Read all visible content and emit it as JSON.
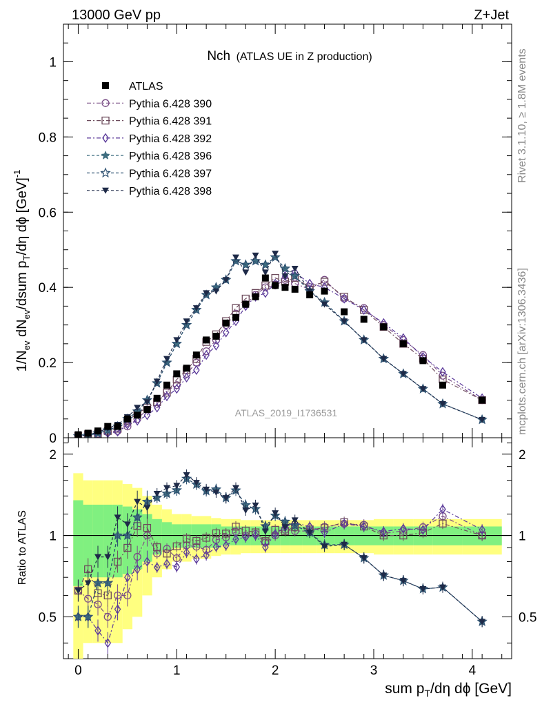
{
  "header": {
    "left": "13000 GeV pp",
    "right": "Z+Jet"
  },
  "side": {
    "rivet": "Rivet 3.1.10, ≥ 1.8M events",
    "mcplots": "mcplots.cern.ch [arXiv:1306.3436]"
  },
  "chart_data": {
    "type": "line",
    "title_main": "Nch",
    "title_sub": "(ATLAS UE in Z production)",
    "watermark": "ATLAS_2019_I1736531",
    "ylabel": "1/N_ev dN_ev/dsum p_T/dη dφ [GeV]^-1",
    "xlabel": "sum p_T/dη dφ [GeV]",
    "ratio_ylabel": "Ratio to ATLAS",
    "xlim": [
      -0.15,
      4.4
    ],
    "ylim": [
      0,
      1.1
    ],
    "ratio_ylim": [
      0.35,
      2.3
    ],
    "xticks": [
      "0",
      "1",
      "2",
      "3",
      "4"
    ],
    "yticks": [
      "0",
      "0.2",
      "0.4",
      "0.6",
      "0.8",
      "1"
    ],
    "ratio_yticks": [
      "0.5",
      "1",
      "2"
    ],
    "x": [
      0.0,
      0.1,
      0.2,
      0.3,
      0.4,
      0.5,
      0.6,
      0.7,
      0.8,
      0.9,
      1.0,
      1.1,
      1.2,
      1.3,
      1.4,
      1.5,
      1.6,
      1.7,
      1.8,
      1.9,
      2.0,
      2.1,
      2.2,
      2.35,
      2.5,
      2.7,
      2.9,
      3.1,
      3.3,
      3.5,
      3.7,
      4.1
    ],
    "legend": [
      {
        "name": "ATLAS"
      },
      {
        "name": "Pythia 6.428 390"
      },
      {
        "name": "Pythia 6.428 391"
      },
      {
        "name": "Pythia 6.428 392"
      },
      {
        "name": "Pythia 6.428 396"
      },
      {
        "name": "Pythia 6.428 397"
      },
      {
        "name": "Pythia 6.428 398"
      }
    ],
    "data": {
      "name": "ATLAS",
      "values": [
        0.008,
        0.012,
        0.018,
        0.03,
        0.03,
        0.05,
        0.06,
        0.075,
        0.105,
        0.14,
        0.17,
        0.185,
        0.22,
        0.26,
        0.27,
        0.305,
        0.32,
        0.355,
        0.375,
        0.425,
        0.405,
        0.4,
        0.395,
        0.38,
        0.39,
        0.335,
        0.315,
        0.295,
        0.25,
        0.205,
        0.14,
        0.1
      ],
      "band_inner": [
        0.35,
        0.3,
        0.3,
        0.3,
        0.3,
        0.28,
        0.25,
        0.2,
        0.15,
        0.12,
        0.1,
        0.1,
        0.1,
        0.1,
        0.1,
        0.08,
        0.08,
        0.08,
        0.08,
        0.08,
        0.08,
        0.08,
        0.08,
        0.08,
        0.08,
        0.08,
        0.08,
        0.08,
        0.08,
        0.08,
        0.08,
        0.08
      ],
      "band_outer": [
        0.7,
        0.6,
        0.6,
        0.6,
        0.6,
        0.55,
        0.5,
        0.4,
        0.3,
        0.25,
        0.2,
        0.2,
        0.18,
        0.18,
        0.16,
        0.15,
        0.15,
        0.14,
        0.14,
        0.14,
        0.14,
        0.14,
        0.14,
        0.14,
        0.14,
        0.14,
        0.14,
        0.15,
        0.15,
        0.15,
        0.15,
        0.15
      ]
    },
    "series": [
      {
        "name": "Pythia 6.428 390",
        "color": "#7a4e86",
        "marker": "circle",
        "dash": "6,3,2,3",
        "values": [
          0.005,
          0.007,
          0.01,
          0.015,
          0.018,
          0.03,
          0.05,
          0.075,
          0.09,
          0.125,
          0.14,
          0.17,
          0.2,
          0.23,
          0.26,
          0.3,
          0.33,
          0.355,
          0.38,
          0.4,
          0.405,
          0.42,
          0.41,
          0.395,
          0.42,
          0.37,
          0.345,
          0.3,
          0.26,
          0.22,
          0.165,
          0.1
        ]
      },
      {
        "name": "Pythia 6.428 391",
        "color": "#6d4b5c",
        "marker": "square",
        "dash": "6,3,2,3",
        "values": [
          0.005,
          0.009,
          0.011,
          0.018,
          0.024,
          0.045,
          0.065,
          0.08,
          0.095,
          0.12,
          0.155,
          0.18,
          0.21,
          0.255,
          0.275,
          0.31,
          0.345,
          0.37,
          0.385,
          0.405,
          0.425,
          0.415,
          0.425,
          0.4,
          0.415,
          0.375,
          0.34,
          0.295,
          0.25,
          0.21,
          0.155,
          0.1
        ]
      },
      {
        "name": "Pythia 6.428 392",
        "color": "#5b3a9a",
        "marker": "diamond",
        "dash": "6,3,2,3",
        "values": [
          0.004,
          0.006,
          0.008,
          0.012,
          0.016,
          0.035,
          0.045,
          0.06,
          0.08,
          0.11,
          0.13,
          0.16,
          0.18,
          0.22,
          0.245,
          0.28,
          0.31,
          0.35,
          0.375,
          0.385,
          0.41,
          0.43,
          0.44,
          0.41,
          0.4,
          0.37,
          0.34,
          0.305,
          0.265,
          0.215,
          0.175,
          0.105
        ]
      },
      {
        "name": "Pythia 6.428 396",
        "color": "#3f6e80",
        "marker": "star",
        "dash": "4,3",
        "values": [
          0.004,
          0.006,
          0.012,
          0.02,
          0.03,
          0.05,
          0.07,
          0.1,
          0.145,
          0.2,
          0.25,
          0.3,
          0.34,
          0.38,
          0.4,
          0.42,
          0.47,
          0.46,
          0.47,
          0.46,
          0.48,
          0.45,
          0.43,
          0.39,
          0.36,
          0.31,
          0.26,
          0.21,
          0.17,
          0.13,
          0.09,
          0.048
        ]
      },
      {
        "name": "Pythia 6.428 397",
        "color": "#2f5272",
        "marker": "star-open",
        "dash": "4,3",
        "values": [
          0.004,
          0.006,
          0.012,
          0.02,
          0.03,
          0.05,
          0.07,
          0.1,
          0.145,
          0.2,
          0.25,
          0.3,
          0.34,
          0.38,
          0.4,
          0.42,
          0.47,
          0.46,
          0.47,
          0.46,
          0.48,
          0.45,
          0.43,
          0.39,
          0.36,
          0.31,
          0.26,
          0.21,
          0.17,
          0.13,
          0.09,
          0.048
        ]
      },
      {
        "name": "Pythia 6.428 398",
        "color": "#1e2a48",
        "marker": "triangle-down",
        "dash": "4,3",
        "values": [
          0.005,
          0.008,
          0.015,
          0.025,
          0.035,
          0.055,
          0.08,
          0.095,
          0.15,
          0.21,
          0.26,
          0.31,
          0.345,
          0.385,
          0.39,
          0.42,
          0.48,
          0.44,
          0.485,
          0.44,
          0.49,
          0.43,
          0.45,
          0.39,
          0.355,
          0.31,
          0.26,
          0.21,
          0.17,
          0.13,
          0.09,
          0.048
        ]
      }
    ]
  }
}
